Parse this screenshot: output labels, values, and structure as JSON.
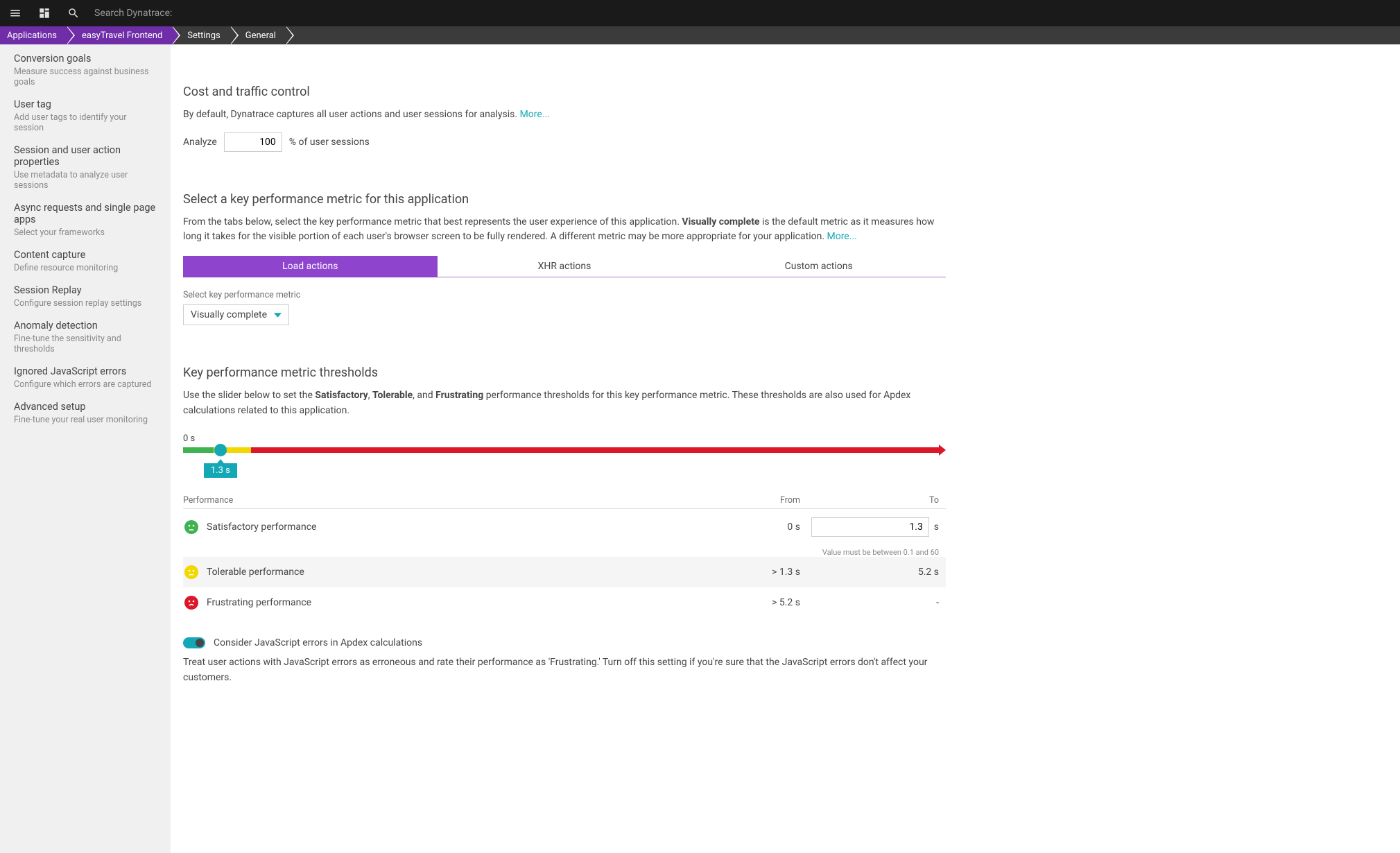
{
  "topbar": {
    "search_placeholder": "Search Dynatrace:"
  },
  "breadcrumbs": [
    "Applications",
    "easyTravel Frontend",
    "Settings",
    "General"
  ],
  "sidebar": [
    {
      "title": "Conversion goals",
      "desc": "Measure success against business goals"
    },
    {
      "title": "User tag",
      "desc": "Add user tags to identify your session"
    },
    {
      "title": "Session and user action properties",
      "desc": "Use metadata to analyze user sessions"
    },
    {
      "title": "Async requests and single page apps",
      "desc": "Select your frameworks"
    },
    {
      "title": "Content capture",
      "desc": "Define resource monitoring"
    },
    {
      "title": "Session Replay",
      "desc": "Configure session replay settings"
    },
    {
      "title": "Anomaly detection",
      "desc": "Fine-tune the sensitivity and thresholds"
    },
    {
      "title": "Ignored JavaScript errors",
      "desc": "Configure which errors are captured"
    },
    {
      "title": "Advanced setup",
      "desc": "Fine-tune your real user monitoring"
    }
  ],
  "cost": {
    "heading": "Cost and traffic control",
    "body": "By default, Dynatrace captures all user actions and user sessions for analysis. ",
    "more": "More...",
    "analyze_label": "Analyze",
    "analyze_value": "100",
    "analyze_suffix": "% of user sessions"
  },
  "kpm": {
    "heading": "Select a key performance metric for this application",
    "body_pre": "From the tabs below, select the key performance metric that best represents the user experience of this application. ",
    "body_bold": "Visually complete",
    "body_post": " is the default metric as it measures how long it takes for the visible portion of each user's browser screen to be fully rendered. A different metric may be more appropriate for your application. ",
    "more": "More...",
    "tabs": [
      "Load actions",
      "XHR actions",
      "Custom actions"
    ],
    "select_label": "Select key performance metric",
    "select_value": "Visually complete"
  },
  "thresholds": {
    "heading": "Key performance metric thresholds",
    "body_pre": "Use the slider below to set the ",
    "b1": "Satisfactory",
    "sep1": ", ",
    "b2": "Tolerable",
    "sep2": ", and ",
    "b3": "Frustrating",
    "body_post": " performance thresholds for this key performance metric. These thresholds are also used for Apdex calculations related to this application.",
    "slider_start": "0 s",
    "handle_label": "1.3 s",
    "slider": {
      "green_pct": 4.0,
      "handle_pct": 4.9,
      "yellow_end_pct": 8.9,
      "green_color": "#3fb34f",
      "yellow_color": "#f0d800",
      "red_color": "#dc172a",
      "handle_color": "#14a8b6"
    },
    "table_head": {
      "c1": "Performance",
      "c2": "From",
      "c3": "To"
    },
    "rows": [
      {
        "face": "#3fb34f",
        "mood": "neutral",
        "label": "Satisfactory performance",
        "from": "0 s",
        "to_input": "1.3",
        "to_unit": "s"
      },
      {
        "face": "#f0d800",
        "mood": "meh",
        "label": "Tolerable performance",
        "from": "> 1.3 s",
        "to": "5.2 s"
      },
      {
        "face": "#dc172a",
        "mood": "sad",
        "label": "Frustrating performance",
        "from": "> 5.2 s",
        "to": "-"
      }
    ],
    "hint": "Value must be between 0.1 and 60"
  },
  "jsToggle": {
    "label": "Consider JavaScript errors in Apdex calculations",
    "desc": "Treat user actions with JavaScript errors as erroneous and rate their performance as 'Frustrating.' Turn off this setting if you're sure that the JavaScript errors don't affect your customers."
  }
}
